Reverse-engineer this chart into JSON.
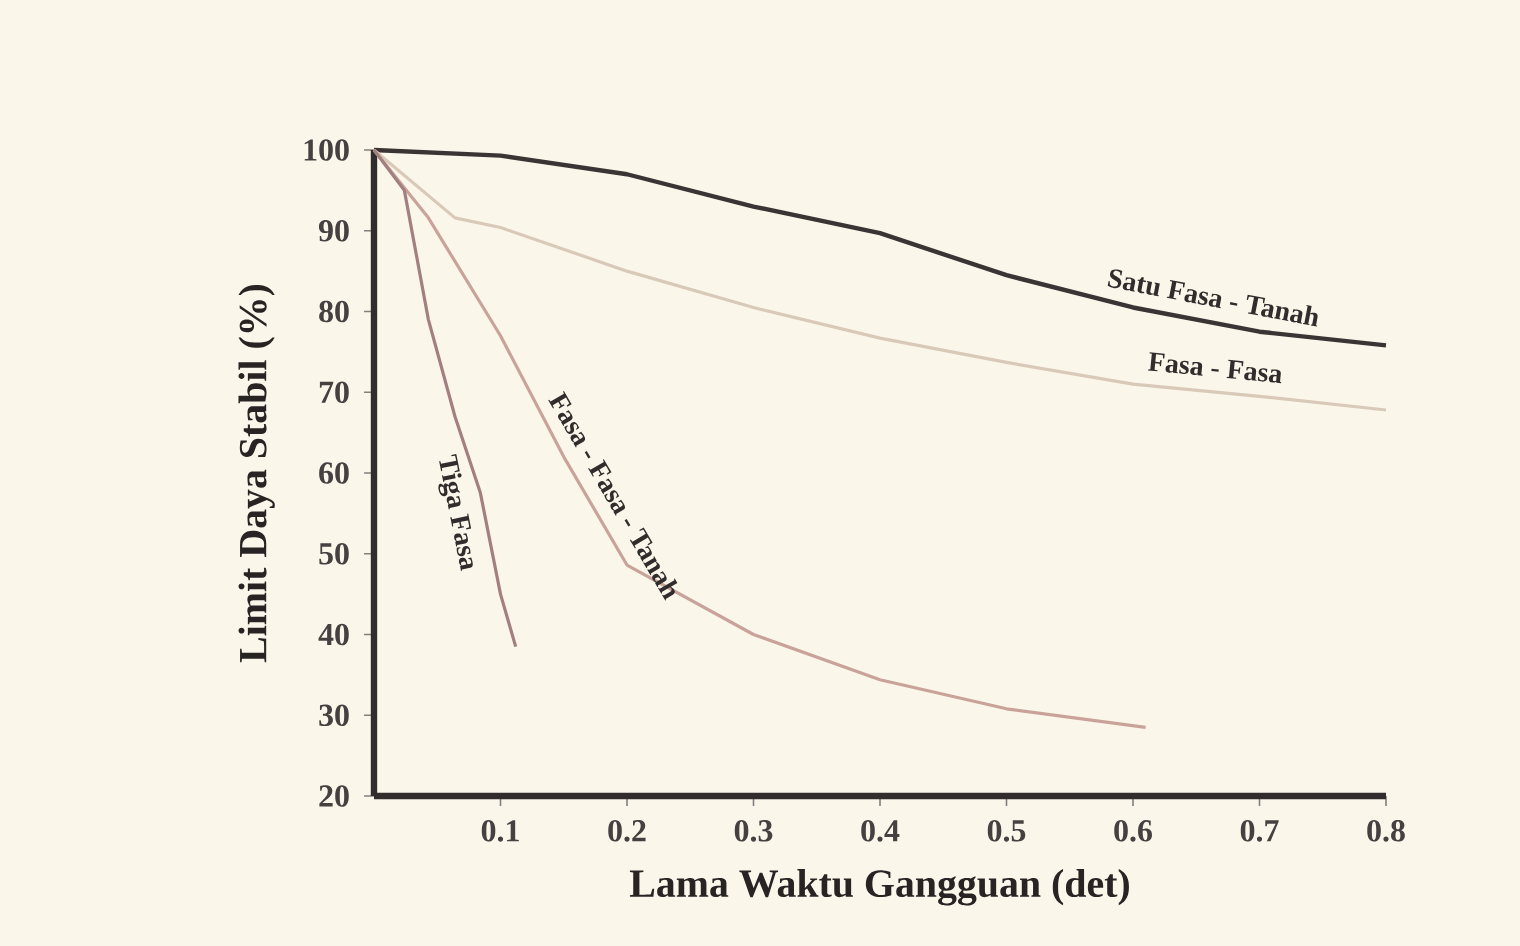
{
  "chart_data": {
    "type": "line",
    "xlabel": "Lama Waktu Gangguan (det)",
    "ylabel": "Limit Daya Stabil (%)",
    "xlim": [
      0,
      0.8
    ],
    "ylim": [
      20,
      100
    ],
    "xticks": [
      0.1,
      0.2,
      0.3,
      0.4,
      0.5,
      0.6,
      0.7,
      0.8
    ],
    "yticks": [
      20,
      30,
      40,
      50,
      60,
      70,
      80,
      90,
      100
    ],
    "grid": false,
    "legend": false,
    "marker": "none",
    "line_style": "solid",
    "series": [
      {
        "name": "Satu Fasa - Tanah",
        "color": "#3a3434",
        "x": [
          0,
          0.1,
          0.2,
          0.3,
          0.4,
          0.5,
          0.6,
          0.7,
          0.8
        ],
        "values": [
          100,
          99.3,
          97,
          93,
          89.7,
          84.5,
          80.5,
          77.5,
          75.8
        ]
      },
      {
        "name": "Fasa - Fasa",
        "color": "#d9c9b9",
        "x": [
          0,
          0.064,
          0.1,
          0.2,
          0.3,
          0.4,
          0.5,
          0.6,
          0.7,
          0.8
        ],
        "values": [
          100,
          91.6,
          90.4,
          85,
          80.5,
          76.7,
          73.7,
          71,
          69.5,
          67.8
        ]
      },
      {
        "name": "Fasa - Fasa - Tanah",
        "color": "#c9a39a",
        "x": [
          0,
          0.043,
          0.1,
          0.15,
          0.2,
          0.3,
          0.4,
          0.5,
          0.61
        ],
        "values": [
          100,
          91.6,
          77,
          62,
          48.6,
          40,
          34.4,
          30.8,
          28.5
        ]
      },
      {
        "name": "Tiga Fasa",
        "color": "#a27f80",
        "x": [
          0,
          0.024,
          0.043,
          0.064,
          0.084,
          0.1,
          0.112
        ],
        "values": [
          100,
          95,
          79,
          67,
          57.6,
          45,
          38.5
        ]
      }
    ]
  }
}
